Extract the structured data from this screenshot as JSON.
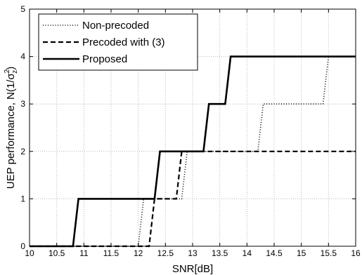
{
  "chart_data": {
    "type": "line",
    "title": "",
    "xlabel": "SNR[dB]",
    "ylabel": {
      "main": "UEP performance, N(1/",
      "sigma": "σ",
      "superscript": "2",
      "subscript": "z",
      "close": ")"
    },
    "xlim": [
      10,
      16
    ],
    "ylim": [
      0,
      5
    ],
    "xticks": [
      10,
      10.5,
      11,
      11.5,
      12,
      12.5,
      13,
      13.5,
      14,
      14.5,
      15,
      15.5,
      16
    ],
    "xtick_labels": [
      "10",
      "10.5",
      "11",
      "11.5",
      "12",
      "12.5",
      "13",
      "13.5",
      "14",
      "14.5",
      "15",
      "15.5",
      "16"
    ],
    "yticks": [
      0,
      1,
      2,
      3,
      4,
      5
    ],
    "ytick_labels": [
      "0",
      "1",
      "2",
      "3",
      "4",
      "5"
    ],
    "grid": true,
    "legend_position": "top-left",
    "series": [
      {
        "name": "Non-precoded",
        "style": "dotted",
        "x": [
          10,
          12.0,
          12.1,
          12.8,
          12.9,
          14.2,
          14.3,
          15.4,
          15.5,
          16
        ],
        "y": [
          0,
          0,
          1,
          1,
          2,
          2,
          3,
          3,
          4,
          4
        ]
      },
      {
        "name": "Precoded with (3)",
        "style": "dashed",
        "x": [
          10,
          12.2,
          12.3,
          12.7,
          12.8,
          16
        ],
        "y": [
          0,
          0,
          1,
          1,
          2,
          2
        ]
      },
      {
        "name": "Proposed",
        "style": "solid",
        "x": [
          10,
          10.8,
          10.9,
          12.3,
          12.4,
          13.2,
          13.3,
          13.6,
          13.7,
          16
        ],
        "y": [
          0,
          0,
          1,
          1,
          2,
          2,
          3,
          3,
          4,
          4
        ]
      }
    ]
  }
}
